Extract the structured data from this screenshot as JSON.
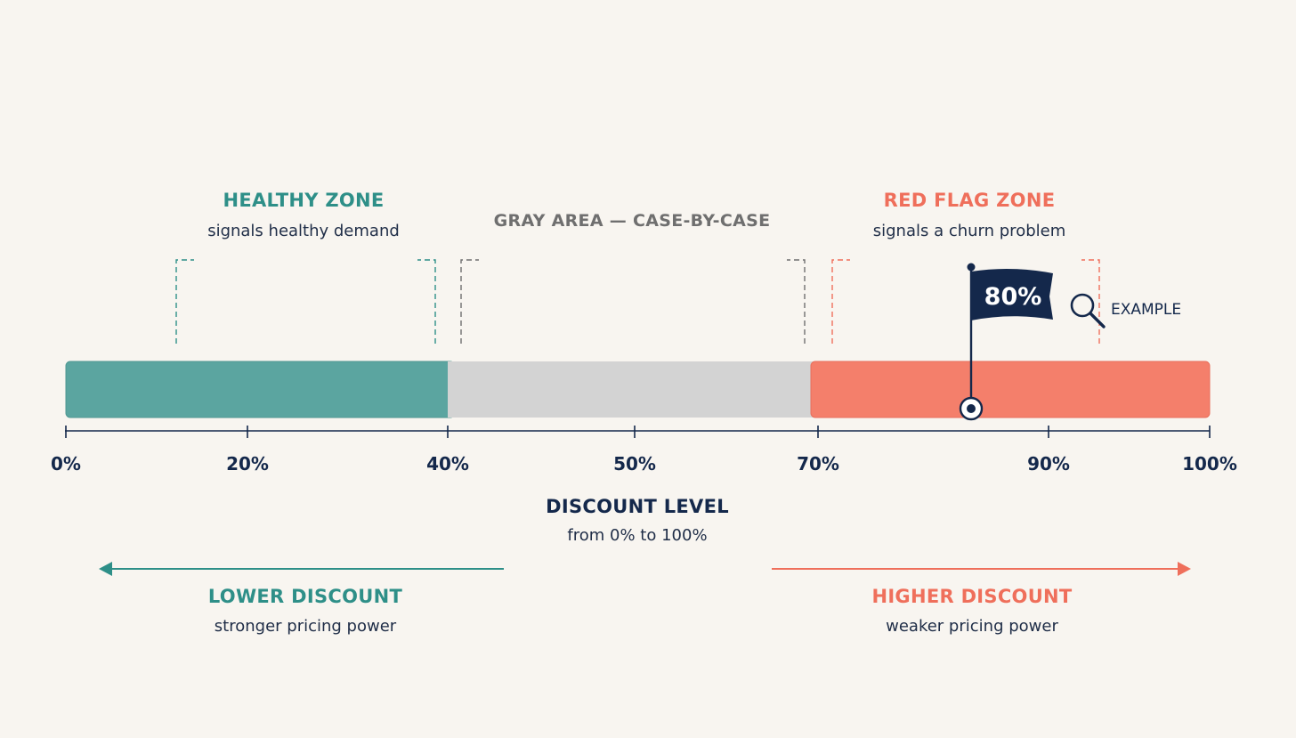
{
  "colors": {
    "background": "#f8f5f0",
    "healthy": "#5ba5a0",
    "healthy_text": "#2e8f88",
    "gray_zone": "#d3d3d3",
    "gray_text": "#6f6f6f",
    "red_zone": "#f47f6b",
    "red_text": "#ef6f5b",
    "navy": "#14284b"
  },
  "zones": {
    "healthy": {
      "title": "HEALTHY ZONE",
      "subtitle": "signals healthy demand",
      "from": 0,
      "to": 40
    },
    "gray": {
      "title": "GRAY AREA — CASE-BY-CASE",
      "from": 40,
      "to": 70
    },
    "red": {
      "title": "RED FLAG ZONE",
      "subtitle": "signals a churn problem",
      "from": 70,
      "to": 100
    }
  },
  "axis": {
    "ticks": [
      {
        "value": 0,
        "label": "0%"
      },
      {
        "value": 20,
        "label": "20%"
      },
      {
        "value": 40,
        "label": "40%"
      },
      {
        "value": 50,
        "label": "50%"
      },
      {
        "value": 70,
        "label": "70%"
      },
      {
        "value": 90,
        "label": "90%"
      },
      {
        "value": 100,
        "label": "100%"
      }
    ],
    "title": "DISCOUNT LEVEL",
    "subtitle": "from 0% to 100%"
  },
  "marker": {
    "value": 80,
    "label": "80%",
    "example_label": "EXAMPLE",
    "icon": "magnifier-icon"
  },
  "directions": {
    "lower": {
      "title": "LOWER DISCOUNT",
      "subtitle": "stronger pricing power",
      "icon": "arrow-left-icon"
    },
    "higher": {
      "title": "HIGHER DISCOUNT",
      "subtitle": "weaker pricing power",
      "icon": "arrow-right-icon"
    }
  }
}
